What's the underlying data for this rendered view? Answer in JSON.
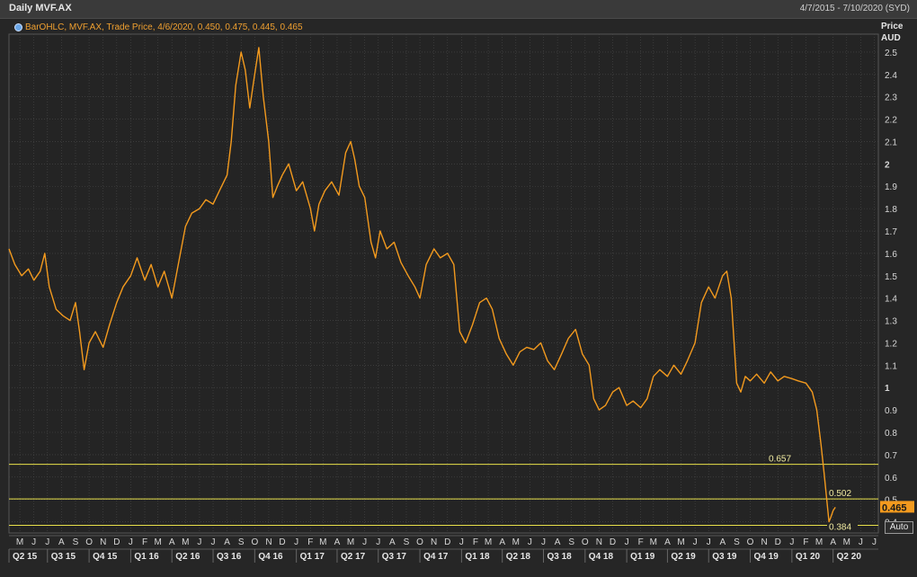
{
  "window": {
    "title": "Daily MVF.AX",
    "date_range": "4/7/2015 - 7/10/2020 (SYD)",
    "legend": "BarOHLC, MVF.AX, Trade Price,  4/6/2020, 0.450, 0.475, 0.445, 0.465",
    "legend_icon": "globe-icon",
    "price_axis_title": "Price",
    "price_axis_unit": "AUD",
    "auto_button": "Auto"
  },
  "colors": {
    "background": "#262626",
    "price_line": "#f39a1e",
    "level_line": "#e8e04a",
    "grid": "#4a4a4a",
    "last_price_tag": "#f39a1e"
  },
  "chart_data": {
    "type": "line",
    "series": [
      {
        "values": [
          [
            "2015-04-07",
            1.62
          ],
          [
            "2015-04-20",
            1.55
          ],
          [
            "2015-05-05",
            1.5
          ],
          [
            "2015-05-20",
            1.53
          ],
          [
            "2015-06-01",
            1.48
          ],
          [
            "2015-06-15",
            1.52
          ],
          [
            "2015-06-25",
            1.6
          ],
          [
            "2015-07-05",
            1.45
          ],
          [
            "2015-07-20",
            1.35
          ],
          [
            "2015-08-05",
            1.32
          ],
          [
            "2015-08-20",
            1.3
          ],
          [
            "2015-09-01",
            1.38
          ],
          [
            "2015-09-10",
            1.25
          ],
          [
            "2015-09-20",
            1.08
          ],
          [
            "2015-10-01",
            1.2
          ],
          [
            "2015-10-15",
            1.25
          ],
          [
            "2015-11-01",
            1.18
          ],
          [
            "2015-11-15",
            1.28
          ],
          [
            "2015-12-01",
            1.38
          ],
          [
            "2015-12-15",
            1.45
          ],
          [
            "2016-01-01",
            1.5
          ],
          [
            "2016-01-15",
            1.58
          ],
          [
            "2016-02-01",
            1.48
          ],
          [
            "2016-02-15",
            1.55
          ],
          [
            "2016-03-01",
            1.45
          ],
          [
            "2016-03-15",
            1.52
          ],
          [
            "2016-04-01",
            1.4
          ],
          [
            "2016-04-15",
            1.55
          ],
          [
            "2016-05-01",
            1.72
          ],
          [
            "2016-05-15",
            1.78
          ],
          [
            "2016-06-01",
            1.8
          ],
          [
            "2016-06-15",
            1.84
          ],
          [
            "2016-07-01",
            1.82
          ],
          [
            "2016-07-15",
            1.88
          ],
          [
            "2016-08-01",
            1.95
          ],
          [
            "2016-08-10",
            2.1
          ],
          [
            "2016-08-20",
            2.35
          ],
          [
            "2016-09-01",
            2.5
          ],
          [
            "2016-09-10",
            2.42
          ],
          [
            "2016-09-20",
            2.25
          ],
          [
            "2016-10-01",
            2.4
          ],
          [
            "2016-10-10",
            2.52
          ],
          [
            "2016-10-20",
            2.3
          ],
          [
            "2016-11-01",
            2.1
          ],
          [
            "2016-11-10",
            1.85
          ],
          [
            "2016-11-20",
            1.9
          ],
          [
            "2016-12-01",
            1.95
          ],
          [
            "2016-12-15",
            2.0
          ],
          [
            "2017-01-01",
            1.88
          ],
          [
            "2017-01-15",
            1.92
          ],
          [
            "2017-02-01",
            1.8
          ],
          [
            "2017-02-10",
            1.7
          ],
          [
            "2017-02-20",
            1.82
          ],
          [
            "2017-03-05",
            1.88
          ],
          [
            "2017-03-20",
            1.92
          ],
          [
            "2017-04-05",
            1.86
          ],
          [
            "2017-04-20",
            2.05
          ],
          [
            "2017-05-01",
            2.1
          ],
          [
            "2017-05-10",
            2.02
          ],
          [
            "2017-05-20",
            1.9
          ],
          [
            "2017-06-01",
            1.85
          ],
          [
            "2017-06-15",
            1.65
          ],
          [
            "2017-06-25",
            1.58
          ],
          [
            "2017-07-05",
            1.7
          ],
          [
            "2017-07-20",
            1.62
          ],
          [
            "2017-08-05",
            1.65
          ],
          [
            "2017-08-20",
            1.56
          ],
          [
            "2017-09-05",
            1.5
          ],
          [
            "2017-09-20",
            1.45
          ],
          [
            "2017-10-01",
            1.4
          ],
          [
            "2017-10-15",
            1.55
          ],
          [
            "2017-11-01",
            1.62
          ],
          [
            "2017-11-15",
            1.58
          ],
          [
            "2017-12-01",
            1.6
          ],
          [
            "2017-12-15",
            1.55
          ],
          [
            "2017-12-28",
            1.25
          ],
          [
            "2018-01-10",
            1.2
          ],
          [
            "2018-01-25",
            1.28
          ],
          [
            "2018-02-10",
            1.38
          ],
          [
            "2018-02-25",
            1.4
          ],
          [
            "2018-03-10",
            1.35
          ],
          [
            "2018-03-25",
            1.22
          ],
          [
            "2018-04-10",
            1.15
          ],
          [
            "2018-04-25",
            1.1
          ],
          [
            "2018-05-10",
            1.16
          ],
          [
            "2018-05-25",
            1.18
          ],
          [
            "2018-06-10",
            1.17
          ],
          [
            "2018-06-25",
            1.2
          ],
          [
            "2018-07-10",
            1.12
          ],
          [
            "2018-07-25",
            1.08
          ],
          [
            "2018-08-10",
            1.15
          ],
          [
            "2018-08-25",
            1.22
          ],
          [
            "2018-09-10",
            1.26
          ],
          [
            "2018-09-25",
            1.15
          ],
          [
            "2018-10-10",
            1.1
          ],
          [
            "2018-10-20",
            0.95
          ],
          [
            "2018-11-01",
            0.9
          ],
          [
            "2018-11-15",
            0.92
          ],
          [
            "2018-12-01",
            0.98
          ],
          [
            "2018-12-15",
            1.0
          ],
          [
            "2019-01-01",
            0.92
          ],
          [
            "2019-01-15",
            0.94
          ],
          [
            "2019-02-01",
            0.91
          ],
          [
            "2019-02-15",
            0.95
          ],
          [
            "2019-03-01",
            1.05
          ],
          [
            "2019-03-15",
            1.08
          ],
          [
            "2019-04-01",
            1.05
          ],
          [
            "2019-04-15",
            1.1
          ],
          [
            "2019-05-01",
            1.06
          ],
          [
            "2019-05-15",
            1.12
          ],
          [
            "2019-06-01",
            1.2
          ],
          [
            "2019-06-15",
            1.38
          ],
          [
            "2019-07-01",
            1.45
          ],
          [
            "2019-07-15",
            1.4
          ],
          [
            "2019-08-01",
            1.5
          ],
          [
            "2019-08-10",
            1.52
          ],
          [
            "2019-08-20",
            1.4
          ],
          [
            "2019-09-01",
            1.02
          ],
          [
            "2019-09-10",
            0.98
          ],
          [
            "2019-09-20",
            1.05
          ],
          [
            "2019-10-01",
            1.03
          ],
          [
            "2019-10-15",
            1.06
          ],
          [
            "2019-11-01",
            1.02
          ],
          [
            "2019-11-15",
            1.07
          ],
          [
            "2019-12-01",
            1.03
          ],
          [
            "2019-12-15",
            1.05
          ],
          [
            "2020-01-01",
            1.04
          ],
          [
            "2020-01-15",
            1.03
          ],
          [
            "2020-02-01",
            1.02
          ],
          [
            "2020-02-15",
            0.98
          ],
          [
            "2020-02-25",
            0.9
          ],
          [
            "2020-03-05",
            0.75
          ],
          [
            "2020-03-12",
            0.62
          ],
          [
            "2020-03-18",
            0.5
          ],
          [
            "2020-03-23",
            0.4
          ],
          [
            "2020-03-27",
            0.42
          ],
          [
            "2020-04-01",
            0.45
          ],
          [
            "2020-04-06",
            0.465
          ]
        ]
      }
    ],
    "x_range": [
      "2015-04-07",
      "2020-07-10"
    ],
    "ylim": [
      0.35,
      2.58
    ],
    "y_ticks": [
      0.4,
      0.5,
      0.6,
      0.7,
      0.8,
      0.9,
      1,
      1.1,
      1.2,
      1.3,
      1.4,
      1.5,
      1.6,
      1.7,
      1.8,
      1.9,
      2,
      2.1,
      2.2,
      2.3,
      2.4,
      2.5
    ],
    "y_tick_labels": [
      "0.4",
      "0.5",
      "0.6",
      "0.7",
      "0.8",
      "0.9",
      "1",
      "1.1",
      "1.2",
      "1.3",
      "1.4",
      "1.5",
      "1.6",
      "1.7",
      "1.8",
      "1.9",
      "2",
      "2.1",
      "2.2",
      "2.3",
      "2.4",
      "2.5"
    ],
    "months": [
      [
        "2015-05-01",
        "M"
      ],
      [
        "2015-06-01",
        "J"
      ],
      [
        "2015-07-01",
        "J"
      ],
      [
        "2015-08-01",
        "A"
      ],
      [
        "2015-09-01",
        "S"
      ],
      [
        "2015-10-01",
        "O"
      ],
      [
        "2015-11-01",
        "N"
      ],
      [
        "2015-12-01",
        "D"
      ],
      [
        "2016-01-01",
        "J"
      ],
      [
        "2016-02-01",
        "F"
      ],
      [
        "2016-03-01",
        "M"
      ],
      [
        "2016-04-01",
        "A"
      ],
      [
        "2016-05-01",
        "M"
      ],
      [
        "2016-06-01",
        "J"
      ],
      [
        "2016-07-01",
        "J"
      ],
      [
        "2016-08-01",
        "A"
      ],
      [
        "2016-09-01",
        "S"
      ],
      [
        "2016-10-01",
        "O"
      ],
      [
        "2016-11-01",
        "N"
      ],
      [
        "2016-12-01",
        "D"
      ],
      [
        "2017-01-01",
        "J"
      ],
      [
        "2017-02-01",
        "F"
      ],
      [
        "2017-03-01",
        "M"
      ],
      [
        "2017-04-01",
        "A"
      ],
      [
        "2017-05-01",
        "M"
      ],
      [
        "2017-06-01",
        "J"
      ],
      [
        "2017-07-01",
        "J"
      ],
      [
        "2017-08-01",
        "A"
      ],
      [
        "2017-09-01",
        "S"
      ],
      [
        "2017-10-01",
        "O"
      ],
      [
        "2017-11-01",
        "N"
      ],
      [
        "2017-12-01",
        "D"
      ],
      [
        "2018-01-01",
        "J"
      ],
      [
        "2018-02-01",
        "F"
      ],
      [
        "2018-03-01",
        "M"
      ],
      [
        "2018-04-01",
        "A"
      ],
      [
        "2018-05-01",
        "M"
      ],
      [
        "2018-06-01",
        "J"
      ],
      [
        "2018-07-01",
        "J"
      ],
      [
        "2018-08-01",
        "A"
      ],
      [
        "2018-09-01",
        "S"
      ],
      [
        "2018-10-01",
        "O"
      ],
      [
        "2018-11-01",
        "N"
      ],
      [
        "2018-12-01",
        "D"
      ],
      [
        "2019-01-01",
        "J"
      ],
      [
        "2019-02-01",
        "F"
      ],
      [
        "2019-03-01",
        "M"
      ],
      [
        "2019-04-01",
        "A"
      ],
      [
        "2019-05-01",
        "M"
      ],
      [
        "2019-06-01",
        "J"
      ],
      [
        "2019-07-01",
        "J"
      ],
      [
        "2019-08-01",
        "A"
      ],
      [
        "2019-09-01",
        "S"
      ],
      [
        "2019-10-01",
        "O"
      ],
      [
        "2019-11-01",
        "N"
      ],
      [
        "2019-12-01",
        "D"
      ],
      [
        "2020-01-01",
        "J"
      ],
      [
        "2020-02-01",
        "F"
      ],
      [
        "2020-03-01",
        "M"
      ],
      [
        "2020-04-01",
        "A"
      ],
      [
        "2020-05-01",
        "M"
      ],
      [
        "2020-06-01",
        "J"
      ],
      [
        "2020-07-01",
        "J"
      ]
    ],
    "quarters": [
      [
        "2015-04-01",
        "Q2 15"
      ],
      [
        "2015-07-01",
        "Q3 15"
      ],
      [
        "2015-10-01",
        "Q4 15"
      ],
      [
        "2016-01-01",
        "Q1 16"
      ],
      [
        "2016-04-01",
        "Q2 16"
      ],
      [
        "2016-07-01",
        "Q3 16"
      ],
      [
        "2016-10-01",
        "Q4 16"
      ],
      [
        "2017-01-01",
        "Q1 17"
      ],
      [
        "2017-04-01",
        "Q2 17"
      ],
      [
        "2017-07-01",
        "Q3 17"
      ],
      [
        "2017-10-01",
        "Q4 17"
      ],
      [
        "2018-01-01",
        "Q1 18"
      ],
      [
        "2018-04-01",
        "Q2 18"
      ],
      [
        "2018-07-01",
        "Q3 18"
      ],
      [
        "2018-10-01",
        "Q4 18"
      ],
      [
        "2019-01-01",
        "Q1 19"
      ],
      [
        "2019-04-01",
        "Q2 19"
      ],
      [
        "2019-07-01",
        "Q3 19"
      ],
      [
        "2019-10-01",
        "Q4 19"
      ],
      [
        "2020-01-01",
        "Q1 20"
      ],
      [
        "2020-04-01",
        "Q2 20"
      ]
    ],
    "horizontal_levels": [
      {
        "value": 0.657,
        "label": "0.657"
      },
      {
        "value": 0.502,
        "label": "0.502"
      },
      {
        "value": 0.384,
        "label": "0.384"
      }
    ],
    "last_price": {
      "value": 0.465,
      "label": "0.465"
    },
    "grid": true
  }
}
